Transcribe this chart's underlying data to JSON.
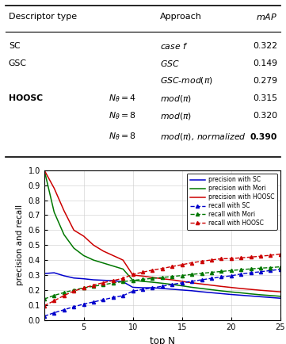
{
  "xlabel": "top N",
  "ylabel": "precision and recall",
  "xlim": [
    1,
    25
  ],
  "ylim": [
    0,
    1.0
  ],
  "xticks": [
    5,
    10,
    15,
    20,
    25
  ],
  "yticks": [
    0,
    0.1,
    0.2,
    0.3,
    0.4,
    0.5,
    0.6,
    0.7,
    0.8,
    0.9,
    1
  ],
  "colors": {
    "SC": "#0000cc",
    "Mori": "#007700",
    "HOOSC": "#cc0000"
  },
  "top_N": [
    1,
    2,
    3,
    4,
    5,
    6,
    7,
    8,
    9,
    10,
    11,
    12,
    13,
    14,
    15,
    16,
    17,
    18,
    19,
    20,
    21,
    22,
    23,
    24,
    25
  ],
  "precision_SC": [
    0.31,
    0.315,
    0.295,
    0.28,
    0.275,
    0.268,
    0.265,
    0.262,
    0.255,
    0.218,
    0.215,
    0.215,
    0.21,
    0.205,
    0.2,
    0.195,
    0.188,
    0.182,
    0.176,
    0.17,
    0.165,
    0.16,
    0.155,
    0.15,
    0.145
  ],
  "precision_Mori": [
    1.0,
    0.72,
    0.57,
    0.48,
    0.43,
    0.4,
    0.38,
    0.36,
    0.34,
    0.265,
    0.258,
    0.252,
    0.245,
    0.237,
    0.228,
    0.218,
    0.21,
    0.202,
    0.194,
    0.187,
    0.181,
    0.174,
    0.168,
    0.163,
    0.158
  ],
  "precision_HOOSC": [
    1.0,
    0.88,
    0.73,
    0.6,
    0.56,
    0.5,
    0.46,
    0.43,
    0.4,
    0.3,
    0.293,
    0.284,
    0.275,
    0.268,
    0.258,
    0.248,
    0.24,
    0.232,
    0.224,
    0.217,
    0.21,
    0.204,
    0.198,
    0.193,
    0.188
  ],
  "recall_SC": [
    0.025,
    0.048,
    0.068,
    0.088,
    0.106,
    0.12,
    0.135,
    0.15,
    0.162,
    0.192,
    0.204,
    0.214,
    0.225,
    0.237,
    0.248,
    0.258,
    0.268,
    0.278,
    0.287,
    0.295,
    0.307,
    0.315,
    0.322,
    0.33,
    0.338
  ],
  "recall_Mori": [
    0.14,
    0.164,
    0.183,
    0.2,
    0.214,
    0.225,
    0.235,
    0.247,
    0.256,
    0.264,
    0.271,
    0.278,
    0.284,
    0.29,
    0.297,
    0.304,
    0.311,
    0.318,
    0.324,
    0.33,
    0.336,
    0.341,
    0.346,
    0.35,
    0.355
  ],
  "recall_HOOSC": [
    0.095,
    0.128,
    0.163,
    0.193,
    0.213,
    0.233,
    0.249,
    0.263,
    0.278,
    0.304,
    0.319,
    0.333,
    0.344,
    0.357,
    0.369,
    0.382,
    0.392,
    0.401,
    0.409,
    0.41,
    0.415,
    0.42,
    0.426,
    0.432,
    0.44
  ],
  "table": {
    "header": [
      "Descriptor type",
      "Approach",
      "mAP"
    ],
    "rows": [
      {
        "desc": "SC",
        "n_theta": "",
        "approach": "case $f$",
        "mAP": "0.322",
        "bold": false
      },
      {
        "desc": "GSC",
        "n_theta": "",
        "approach": "$GSC$",
        "mAP": "0.149",
        "bold": false
      },
      {
        "desc": "",
        "n_theta": "",
        "approach": "$GSC$-$mod(\\pi)$",
        "mAP": "0.279",
        "bold": false
      },
      {
        "desc": "HOOSC",
        "n_theta": "$N_\\theta=4$",
        "approach": "$mod(\\pi)$",
        "mAP": "0.315",
        "bold": false
      },
      {
        "desc": "",
        "n_theta": "$N_\\theta=8$",
        "approach": "$mod(\\pi)$",
        "mAP": "0.320",
        "bold": false
      },
      {
        "desc": "",
        "n_theta": "$N_\\theta=8$",
        "approach": "$mod(\\pi)$, normalized",
        "mAP": "0.390",
        "bold": true
      }
    ]
  }
}
